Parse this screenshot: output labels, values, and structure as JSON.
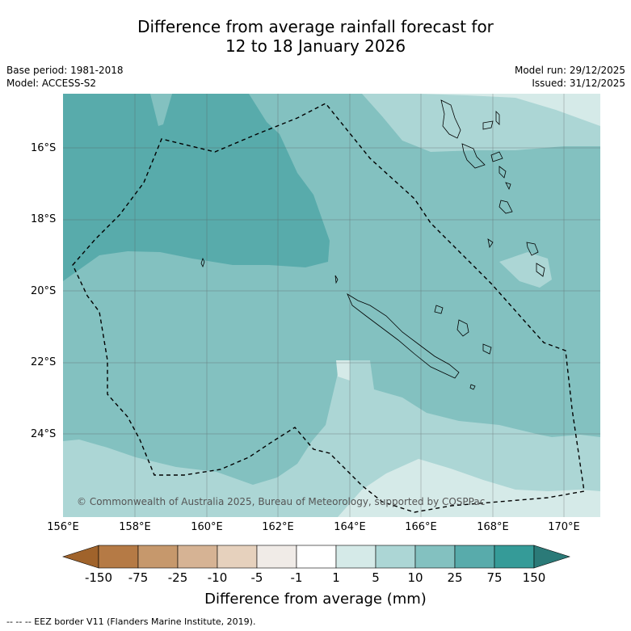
{
  "title": {
    "line1": "Difference from average rainfall forecast for",
    "line2": "12 to 18 January 2026"
  },
  "meta": {
    "base_period": "Base period: 1981-2018",
    "model": "Model: ACCESS-S2",
    "model_run": "Model run: 29/12/2025",
    "issued": "Issued: 31/12/2025"
  },
  "map": {
    "lat_labels": [
      "16°S",
      "18°S",
      "20°S",
      "22°S",
      "24°S"
    ],
    "lon_labels": [
      "156°E",
      "158°E",
      "160°E",
      "162°E",
      "164°E",
      "166°E",
      "168°E",
      "170°E"
    ],
    "credit": "© Commonwealth of Australia 2025, Bureau of Meteorology, supported by COSPPac"
  },
  "colorbar": {
    "labels": [
      "-150",
      "-75",
      "-25",
      "-10",
      "-5",
      "-1",
      "1",
      "5",
      "10",
      "25",
      "75",
      "150"
    ],
    "colors": [
      "#a0632b",
      "#b57a45",
      "#c6986c",
      "#d6b394",
      "#e6d1bd",
      "#f0ebe7",
      "#ffffff",
      "#d5eae8",
      "#acd6d5",
      "#83c1c0",
      "#58abab",
      "#359b98",
      "#2b7a78"
    ],
    "title": "Difference from average (mm)"
  },
  "footer": "--  --  -- EEZ border V11 (Flanders Marine Institute, 2019)."
}
